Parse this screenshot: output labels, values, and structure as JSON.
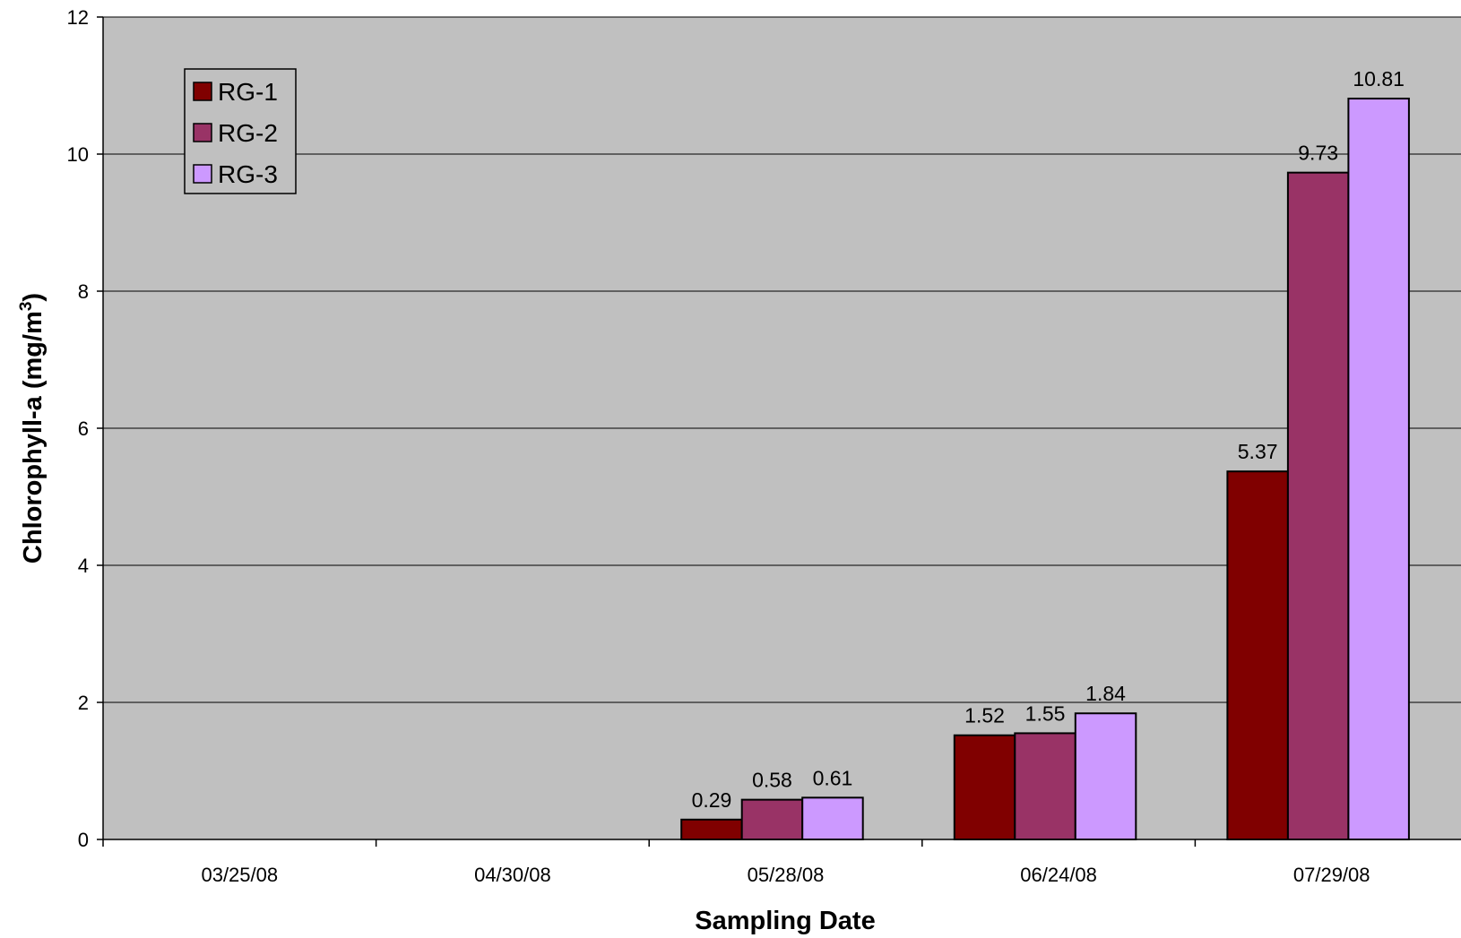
{
  "chart_data": {
    "type": "bar",
    "xlabel": "Sampling Date",
    "ylabel": "Chlorophyll-a (mg/m",
    "ylabel_superscript": "3",
    "ylabel_suffix": ")",
    "categories": [
      "03/25/08",
      "04/30/08",
      "05/28/08",
      "06/24/08",
      "07/29/08"
    ],
    "series": [
      {
        "name": "RG-1",
        "color": "#800000",
        "values": [
          null,
          null,
          0.29,
          1.52,
          5.37
        ]
      },
      {
        "name": "RG-2",
        "color": "#993366",
        "values": [
          null,
          null,
          0.58,
          1.55,
          9.73
        ]
      },
      {
        "name": "RG-3",
        "color": "#cc99ff",
        "values": [
          null,
          null,
          0.61,
          1.84,
          10.81
        ]
      }
    ],
    "ylim": [
      0,
      12
    ],
    "yticks": [
      0,
      2,
      4,
      6,
      8,
      10,
      12
    ],
    "grid": true,
    "plot_background": "#c0c0c0",
    "data_labels": true,
    "legend_position": "top-left"
  }
}
